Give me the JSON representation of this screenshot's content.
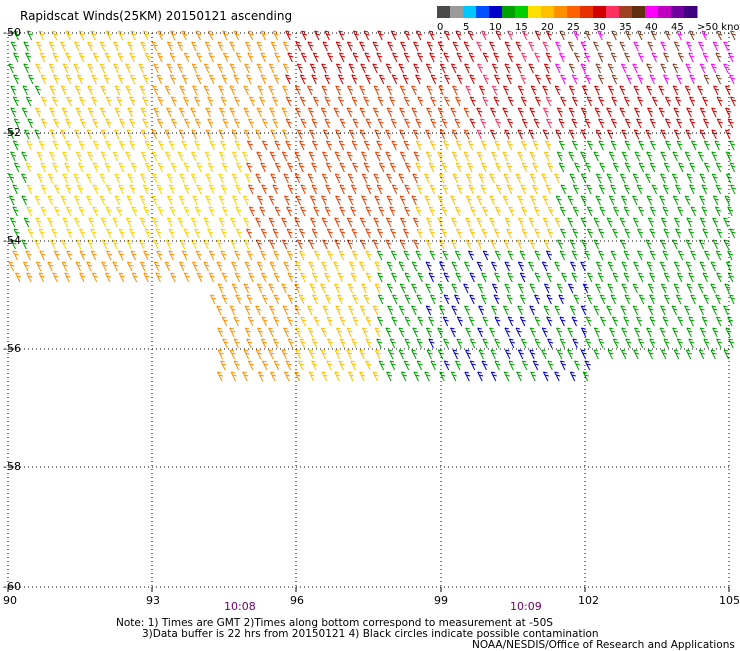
{
  "title": "Rapidscat Winds(25KM) 20150121 ascending",
  "colorbar": {
    "labels": [
      "0",
      "5",
      "10",
      "15",
      "20",
      "25",
      "30",
      "35",
      "40",
      "45",
      ">50 knots"
    ],
    "colors": [
      "#4a4a4a",
      "#9a9a9a",
      "#00c8ff",
      "#0050ff",
      "#0000c8",
      "#00a000",
      "#00d000",
      "#ffe000",
      "#ffc000",
      "#ff9000",
      "#ff6000",
      "#e83000",
      "#d00000",
      "#ff3060",
      "#a04020",
      "#603010",
      "#ff00ff",
      "#c000c0",
      "#7000a0",
      "#400080"
    ]
  },
  "axes": {
    "lon_ticks": [
      "90",
      "93",
      "96",
      "99",
      "102",
      "105"
    ],
    "lat_ticks": [
      "-50",
      "-52",
      "-54",
      "-56",
      "-58",
      "-60"
    ],
    "lon_range": [
      90,
      105
    ],
    "lat_range": [
      -60,
      -50
    ],
    "grid": "dotted"
  },
  "times": [
    "10:08",
    "10:09"
  ],
  "notes": [
    "Note: 1) Times are GMT 2)Times along bottom correspond to measurement at -50S",
    "3)Data buffer is 22 hrs from 20150121 4) Black circles indicate possible contamination",
    "NOAA/NESDIS/Office of Research and Applications"
  ]
}
